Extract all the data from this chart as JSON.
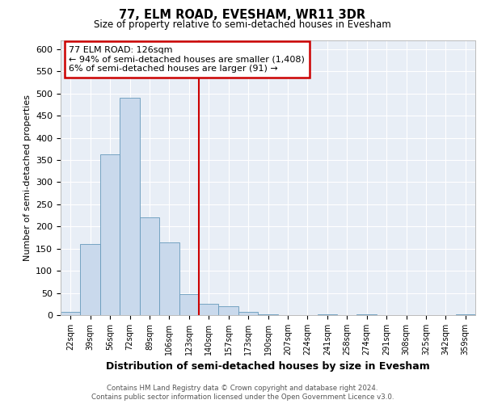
{
  "title": "77, ELM ROAD, EVESHAM, WR11 3DR",
  "subtitle": "Size of property relative to semi-detached houses in Evesham",
  "xlabel": "Distribution of semi-detached houses by size in Evesham",
  "ylabel": "Number of semi-detached properties",
  "bin_labels": [
    "22sqm",
    "39sqm",
    "56sqm",
    "72sqm",
    "89sqm",
    "106sqm",
    "123sqm",
    "140sqm",
    "157sqm",
    "173sqm",
    "190sqm",
    "207sqm",
    "224sqm",
    "241sqm",
    "258sqm",
    "274sqm",
    "291sqm",
    "308sqm",
    "325sqm",
    "342sqm",
    "359sqm"
  ],
  "bar_heights": [
    8,
    160,
    363,
    490,
    220,
    165,
    47,
    25,
    20,
    8,
    2,
    0,
    0,
    1,
    0,
    1,
    0,
    0,
    0,
    0,
    1
  ],
  "bar_color": "#c9d9ec",
  "bar_edge_color": "#6699bb",
  "vline_color": "#cc0000",
  "annotation_title": "77 ELM ROAD: 126sqm",
  "annotation_line1": "← 94% of semi-detached houses are smaller (1,408)",
  "annotation_line2": "6% of semi-detached houses are larger (91) →",
  "annotation_box_edge": "#cc0000",
  "ylim": [
    0,
    620
  ],
  "yticks": [
    0,
    50,
    100,
    150,
    200,
    250,
    300,
    350,
    400,
    450,
    500,
    550,
    600
  ],
  "footer1": "Contains HM Land Registry data © Crown copyright and database right 2024.",
  "footer2": "Contains public sector information licensed under the Open Government Licence v3.0.",
  "fig_bg_color": "#ffffff",
  "plot_bg_color": "#e8eef6"
}
